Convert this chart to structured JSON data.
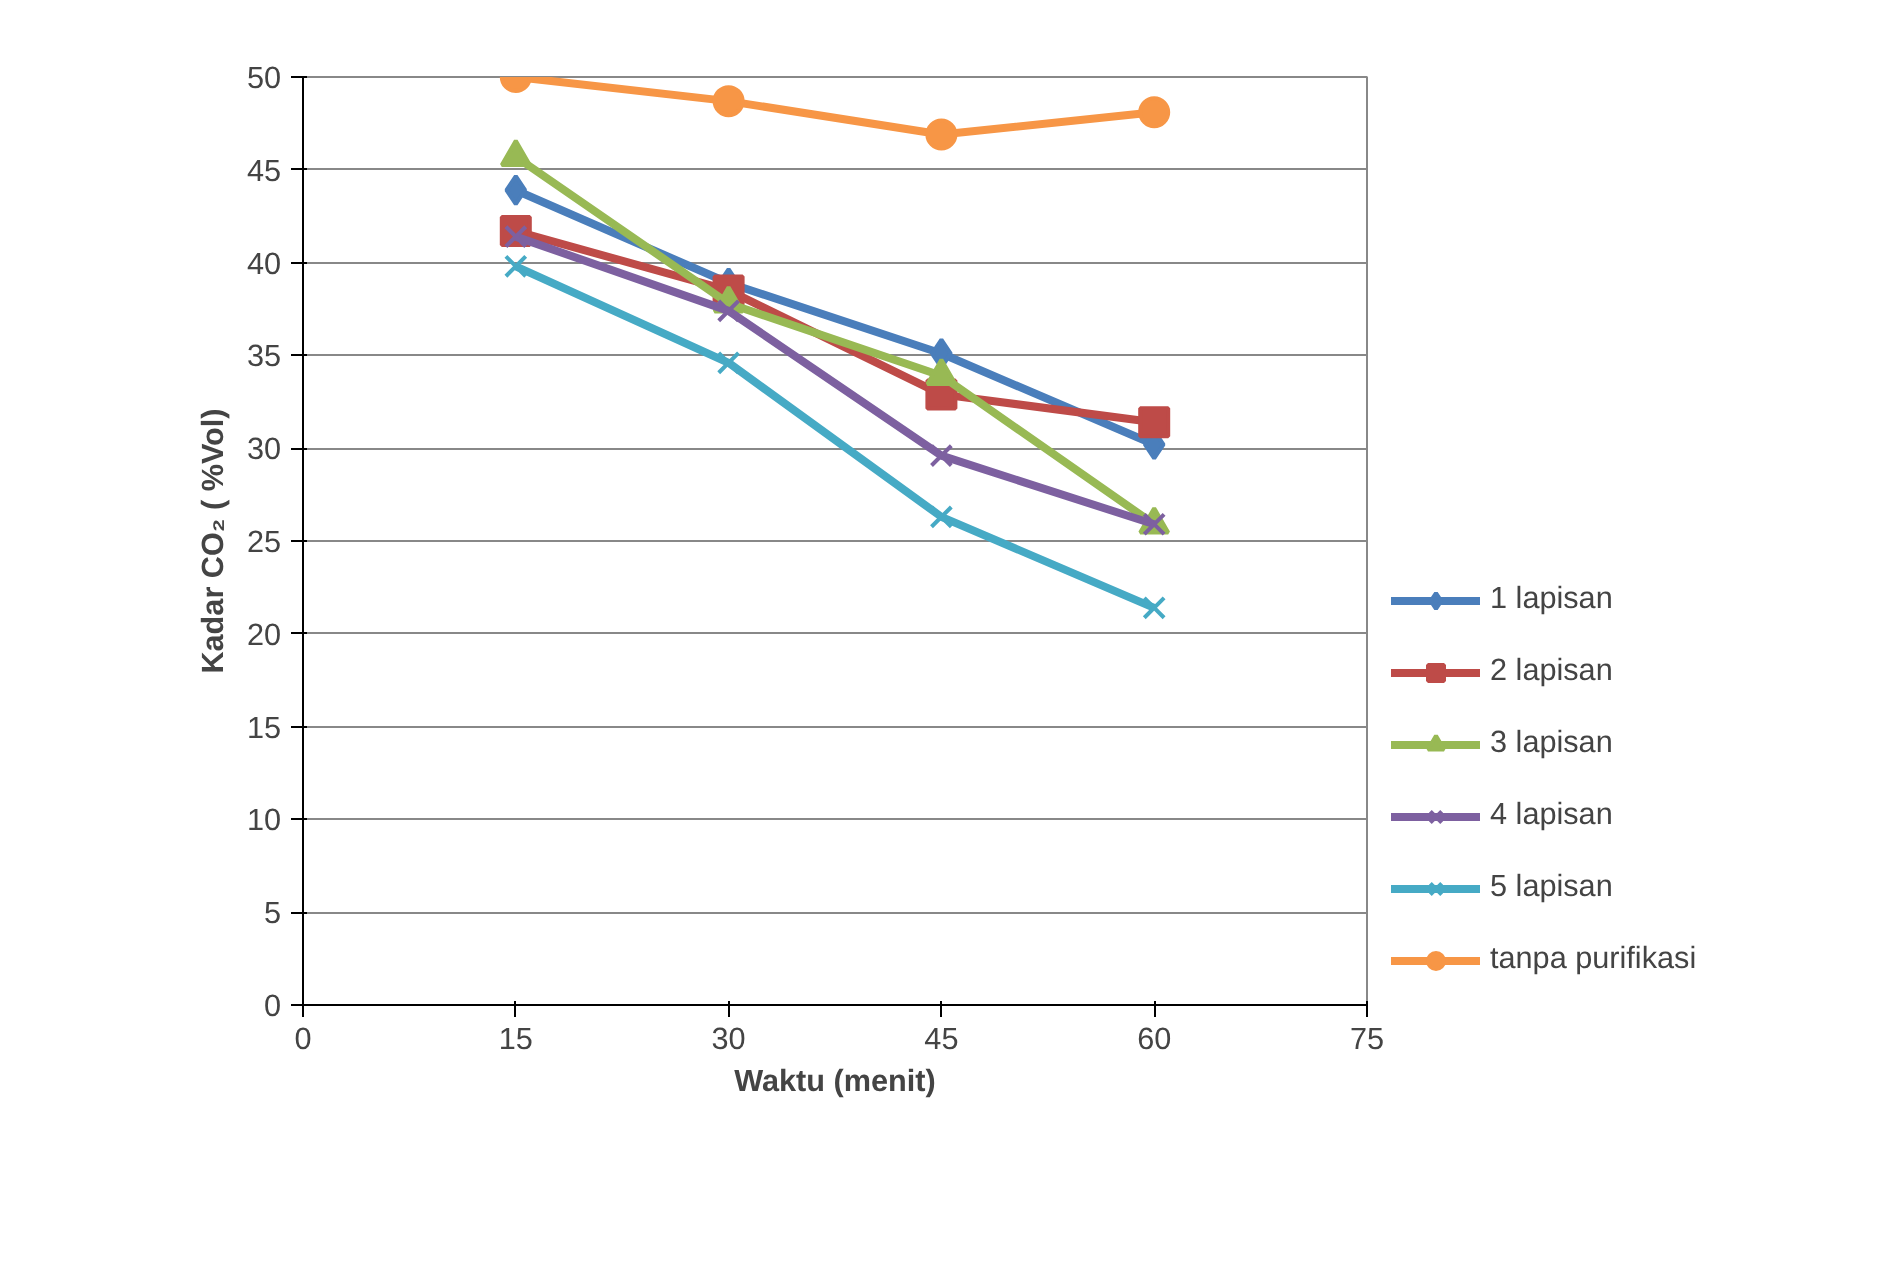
{
  "chart_data": {
    "type": "line",
    "xlabel": "Waktu (menit)",
    "ylabel": "Kadar CO₂ ( %Vol)",
    "x": [
      15,
      30,
      45,
      60
    ],
    "xlim": [
      0,
      75
    ],
    "xticks": [
      0,
      15,
      30,
      45,
      60,
      75
    ],
    "ylim": [
      0,
      50
    ],
    "yticks": [
      0,
      5,
      10,
      15,
      20,
      25,
      30,
      35,
      40,
      45,
      50
    ],
    "grid": "y",
    "legend": "right",
    "series": [
      {
        "name": "1 lapisan",
        "color": "#4a7ebb",
        "marker": "diamond",
        "values": [
          43.9,
          38.9,
          35.1,
          30.2
        ]
      },
      {
        "name": "2 lapisan",
        "color": "#be4b48",
        "marker": "square",
        "values": [
          41.7,
          38.5,
          32.9,
          31.4
        ]
      },
      {
        "name": "3 lapisan",
        "color": "#98b954",
        "marker": "triangle",
        "values": [
          45.7,
          37.8,
          33.9,
          25.9
        ]
      },
      {
        "name": "4 lapisan",
        "color": "#7d60a0",
        "marker": "cross",
        "values": [
          41.4,
          37.4,
          29.6,
          25.9
        ]
      },
      {
        "name": "5 lapisan",
        "color": "#46aac5",
        "marker": "cross",
        "values": [
          39.8,
          34.6,
          26.3,
          21.4
        ]
      },
      {
        "name": "tanpa purifikasi",
        "color": "#f79646",
        "marker": "circle",
        "values": [
          50,
          48.7,
          46.9,
          48.1
        ]
      }
    ]
  }
}
